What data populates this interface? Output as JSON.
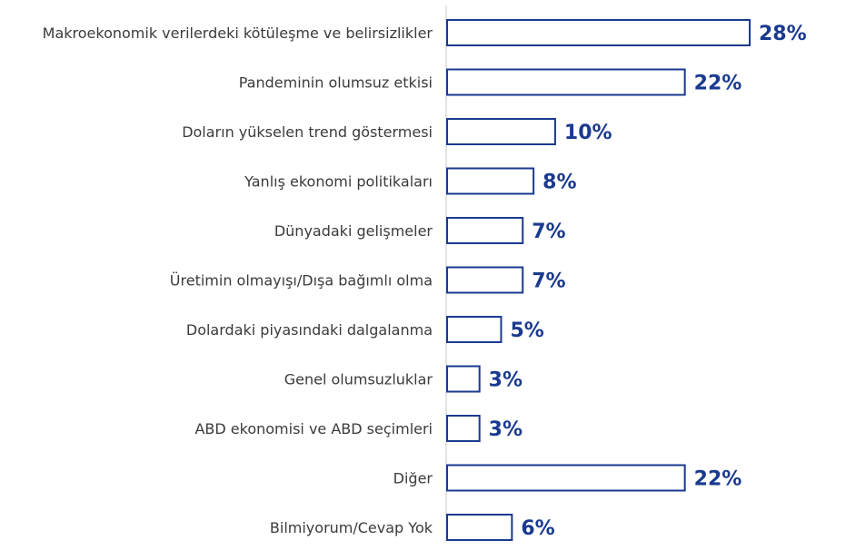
{
  "chart_data": {
    "type": "bar",
    "orientation": "horizontal",
    "categories": [
      "Makroekonomik verilerdeki kötüleşme ve belirsizlikler",
      "Pandeminin olumsuz etkisi",
      "Doların yükselen trend göstermesi",
      "Yanlış ekonomi politikaları",
      "Dünyadaki gelişmeler",
      "Üretimin olmayışı/Dışa bağımlı olma",
      "Dolardaki piyasındaki dalgalanma",
      "Genel olumsuzluklar",
      "ABD ekonomisi ve ABD seçimleri",
      "Diğer",
      "Bilmiyorum/Cevap Yok"
    ],
    "values": [
      28,
      22,
      10,
      8,
      7,
      7,
      5,
      3,
      3,
      22,
      6
    ],
    "value_labels": [
      "28%",
      "22%",
      "10%",
      "8%",
      "7%",
      "7%",
      "5%",
      "3%",
      "3%",
      "22%",
      "6%"
    ],
    "xlim": [
      0,
      28
    ],
    "grid": false,
    "bar_color": "#1a3a8f",
    "label_color": "#1a3a8f"
  }
}
